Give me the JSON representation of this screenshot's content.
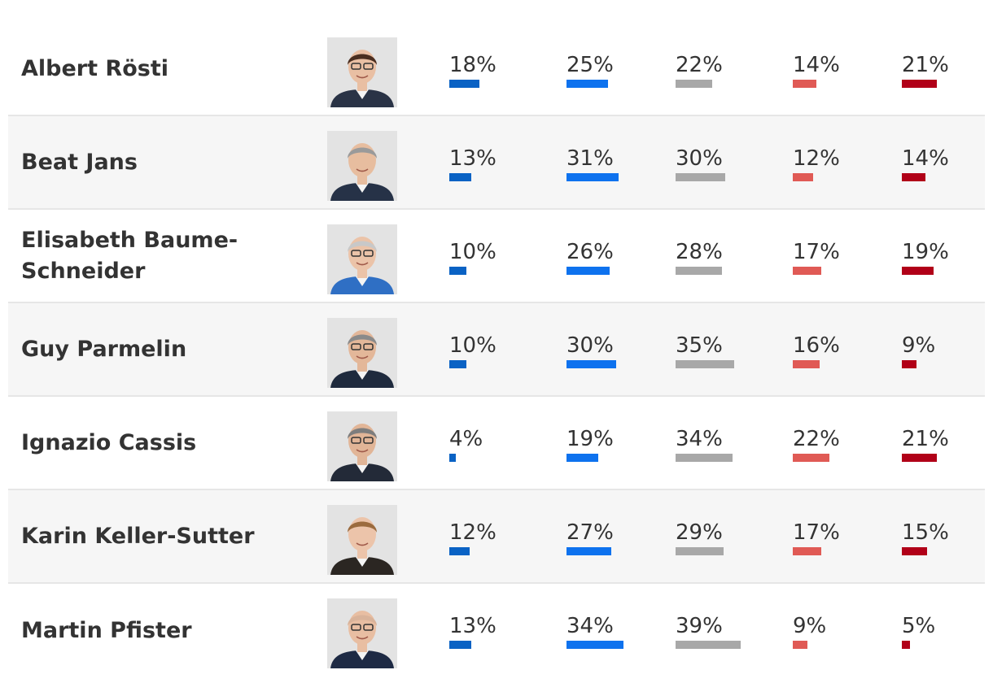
{
  "chart_data": {
    "type": "table",
    "series_colors": [
      "#0a62c4",
      "#0e72ee",
      "#a8a8a8",
      "#e05a55",
      "#b10018"
    ],
    "rows": [
      {
        "name": "Albert Rösti",
        "values": [
          18,
          25,
          22,
          14,
          21
        ],
        "labels": [
          "18%",
          "25%",
          "22%",
          "14%",
          "21%"
        ],
        "suit": "#2a3346",
        "skin": "#e9bfa3",
        "hair": "#4a2e20",
        "glasses": true
      },
      {
        "name": "Beat Jans",
        "values": [
          13,
          31,
          30,
          12,
          14
        ],
        "labels": [
          "13%",
          "31%",
          "30%",
          "12%",
          "14%"
        ],
        "suit": "#263247",
        "skin": "#e7bd9f",
        "hair": "#9a9a9a",
        "glasses": false
      },
      {
        "name": "Elisabeth Baume-Schneider",
        "values": [
          10,
          26,
          28,
          17,
          19
        ],
        "labels": [
          "10%",
          "26%",
          "28%",
          "17%",
          "19%"
        ],
        "suit": "#2f6fc4",
        "skin": "#ebc3a8",
        "hair": "#c8c8c8",
        "glasses": true
      },
      {
        "name": "Guy Parmelin",
        "values": [
          10,
          30,
          35,
          16,
          9
        ],
        "labels": [
          "10%",
          "30%",
          "35%",
          "16%",
          "9%"
        ],
        "suit": "#1f2a3d",
        "skin": "#e3b799",
        "hair": "#8a8a8a",
        "glasses": true
      },
      {
        "name": "Ignazio Cassis",
        "values": [
          4,
          19,
          34,
          22,
          21
        ],
        "labels": [
          "4%",
          "19%",
          "34%",
          "22%",
          "21%"
        ],
        "suit": "#232a38",
        "skin": "#e1b597",
        "hair": "#7d7d7d",
        "glasses": true
      },
      {
        "name": "Karin Keller-Sutter",
        "values": [
          12,
          27,
          29,
          17,
          15
        ],
        "labels": [
          "12%",
          "27%",
          "29%",
          "17%",
          "15%"
        ],
        "suit": "#2b2622",
        "skin": "#ecc4aa",
        "hair": "#9b6b3e",
        "glasses": false
      },
      {
        "name": "Martin Pfister",
        "values": [
          13,
          34,
          39,
          9,
          5
        ],
        "labels": [
          "13%",
          "34%",
          "39%",
          "9%",
          "5%"
        ],
        "suit": "#1e2a44",
        "skin": "#e8bea2",
        "hair": "#d9b39a",
        "glasses": true
      }
    ]
  }
}
